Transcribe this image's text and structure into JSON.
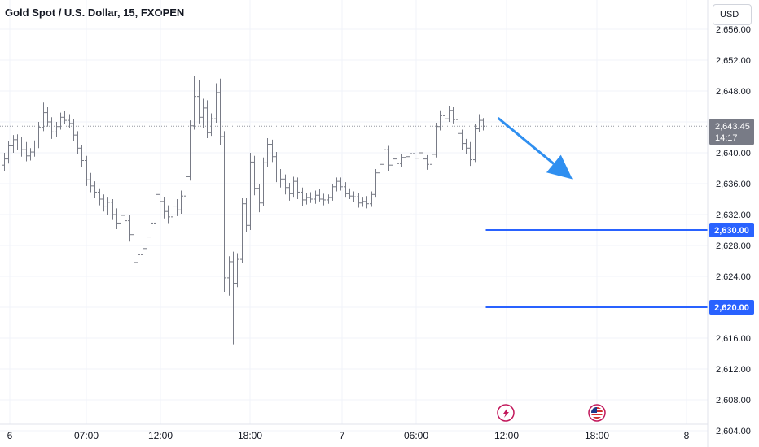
{
  "header": {
    "title": "Gold Spot / U.S. Dollar, 15, FXOPEN",
    "currency": "USD"
  },
  "chart_data": {
    "type": "bar",
    "subtype": "ohlc",
    "title": "Gold Spot / U.S. Dollar, 15, FXOPEN",
    "xlabel": "",
    "ylabel": "",
    "ylim": [
      2602.5,
      2658
    ],
    "y_ticks": [
      "2,656.00",
      "2,652.00",
      "2,648.00",
      "2,644.00",
      "2,640.00",
      "2,636.00",
      "2,632.00",
      "2,628.00",
      "2,624.00",
      "2,620.00",
      "2,616.00",
      "2,612.00",
      "2,608.00",
      "2,604.00"
    ],
    "x_ticks": [
      "6",
      "07:00",
      "12:00",
      "18:00",
      "7",
      "06:00",
      "12:00",
      "18:00",
      "8"
    ],
    "grid": true,
    "colors": {
      "bar": "#787b86",
      "level": "#2962ff",
      "arrow": "#2f8ff0",
      "price_label": "#787b86"
    },
    "current_price": {
      "label": "2,643.45",
      "value": 2643.45,
      "countdown": "14:17"
    },
    "levels": [
      {
        "label": "2,630.00",
        "value": 2630.0
      },
      {
        "label": "2,620.00",
        "value": 2620.0
      }
    ],
    "arrow": {
      "direction": "down-right",
      "from_value": 2644.3,
      "to_value": 2637.0
    },
    "events": [
      {
        "icon": "lightning-icon",
        "at_tick": "12:00"
      },
      {
        "icon": "us-flag-icon",
        "at_tick": "18:00"
      }
    ],
    "ohlc": [
      [
        2638.4,
        2640.0,
        2637.6,
        2639.2
      ],
      [
        2639.2,
        2641.5,
        2638.6,
        2640.9
      ],
      [
        2640.9,
        2642.3,
        2640.0,
        2641.7
      ],
      [
        2641.7,
        2642.4,
        2640.4,
        2641.0
      ],
      [
        2641.0,
        2642.0,
        2639.5,
        2640.4
      ],
      [
        2640.4,
        2641.4,
        2638.9,
        2639.6
      ],
      [
        2639.6,
        2640.6,
        2639.0,
        2640.1
      ],
      [
        2640.1,
        2641.6,
        2639.5,
        2641.0
      ],
      [
        2641.0,
        2644.0,
        2640.6,
        2643.3
      ],
      [
        2643.3,
        2646.5,
        2642.8,
        2645.2
      ],
      [
        2645.2,
        2645.9,
        2643.4,
        2644.0
      ],
      [
        2644.0,
        2644.6,
        2641.8,
        2642.7
      ],
      [
        2642.7,
        2644.0,
        2642.1,
        2643.4
      ],
      [
        2643.4,
        2645.2,
        2643.0,
        2644.6
      ],
      [
        2644.6,
        2645.4,
        2643.7,
        2644.2
      ],
      [
        2644.2,
        2645.0,
        2643.2,
        2643.8
      ],
      [
        2643.8,
        2644.4,
        2641.5,
        2642.3
      ],
      [
        2642.3,
        2642.8,
        2639.8,
        2640.6
      ],
      [
        2640.6,
        2641.0,
        2638.2,
        2639.0
      ],
      [
        2639.0,
        2639.6,
        2635.7,
        2636.5
      ],
      [
        2636.5,
        2637.4,
        2634.9,
        2635.7
      ],
      [
        2635.7,
        2636.3,
        2634.1,
        2634.9
      ],
      [
        2634.9,
        2635.4,
        2633.2,
        2634.0
      ],
      [
        2634.0,
        2634.6,
        2632.4,
        2633.1
      ],
      [
        2633.1,
        2634.2,
        2632.0,
        2633.6
      ],
      [
        2633.6,
        2634.0,
        2631.3,
        2632.0
      ],
      [
        2632.0,
        2632.8,
        2630.1,
        2630.9
      ],
      [
        2630.9,
        2632.6,
        2630.5,
        2631.9
      ],
      [
        2631.9,
        2632.5,
        2630.6,
        2631.2
      ],
      [
        2631.2,
        2631.9,
        2628.5,
        2629.4
      ],
      [
        2629.4,
        2629.9,
        2625.0,
        2625.8
      ],
      [
        2625.8,
        2627.3,
        2625.3,
        2626.8
      ],
      [
        2626.8,
        2628.2,
        2626.1,
        2627.6
      ],
      [
        2627.6,
        2630.0,
        2627.0,
        2629.1
      ],
      [
        2629.1,
        2631.6,
        2628.6,
        2630.9
      ],
      [
        2630.9,
        2635.2,
        2630.4,
        2634.6
      ],
      [
        2634.6,
        2635.7,
        2632.9,
        2633.7
      ],
      [
        2633.7,
        2634.3,
        2631.5,
        2632.4
      ],
      [
        2632.4,
        2633.2,
        2630.9,
        2631.7
      ],
      [
        2631.7,
        2633.8,
        2631.2,
        2633.1
      ],
      [
        2633.1,
        2634.0,
        2631.8,
        2632.6
      ],
      [
        2632.6,
        2635.1,
        2632.1,
        2634.4
      ],
      [
        2634.4,
        2637.5,
        2633.9,
        2636.9
      ],
      [
        2636.9,
        2644.2,
        2636.4,
        2643.5
      ],
      [
        2643.5,
        2650.0,
        2643.0,
        2647.3
      ],
      [
        2647.3,
        2649.4,
        2643.8,
        2644.6
      ],
      [
        2644.6,
        2647.0,
        2643.2,
        2645.8
      ],
      [
        2645.8,
        2646.8,
        2641.9,
        2642.6
      ],
      [
        2642.6,
        2645.1,
        2642.2,
        2644.4
      ],
      [
        2644.4,
        2649.0,
        2643.9,
        2647.8
      ],
      [
        2647.8,
        2649.6,
        2641.0,
        2642.1
      ],
      [
        2642.1,
        2642.8,
        2622.0,
        2623.8
      ],
      [
        2623.8,
        2626.6,
        2621.5,
        2625.9
      ],
      [
        2625.9,
        2627.2,
        2615.2,
        2623.1
      ],
      [
        2623.1,
        2627.0,
        2622.6,
        2626.2
      ],
      [
        2626.2,
        2634.1,
        2625.7,
        2633.4
      ],
      [
        2633.4,
        2634.1,
        2629.7,
        2630.6
      ],
      [
        2630.6,
        2640.0,
        2630.0,
        2638.8
      ],
      [
        2638.8,
        2639.6,
        2634.5,
        2635.4
      ],
      [
        2635.4,
        2636.0,
        2632.3,
        2633.5
      ],
      [
        2633.5,
        2639.4,
        2633.1,
        2638.7
      ],
      [
        2638.7,
        2641.9,
        2638.2,
        2641.1
      ],
      [
        2641.1,
        2641.7,
        2638.8,
        2639.5
      ],
      [
        2639.5,
        2640.1,
        2636.2,
        2637.0
      ],
      [
        2637.0,
        2637.9,
        2635.5,
        2636.6
      ],
      [
        2636.6,
        2637.2,
        2634.6,
        2635.5
      ],
      [
        2635.5,
        2636.1,
        2633.8,
        2634.7
      ],
      [
        2634.7,
        2636.9,
        2634.2,
        2636.3
      ],
      [
        2636.3,
        2636.8,
        2634.0,
        2634.9
      ],
      [
        2634.9,
        2635.5,
        2633.1,
        2633.9
      ],
      [
        2633.9,
        2634.8,
        2633.3,
        2634.2
      ],
      [
        2634.2,
        2634.9,
        2633.5,
        2634.0
      ],
      [
        2634.0,
        2635.1,
        2633.4,
        2634.5
      ],
      [
        2634.5,
        2635.3,
        2633.7,
        2634.0
      ],
      [
        2634.0,
        2634.7,
        2633.2,
        2633.9
      ],
      [
        2633.9,
        2634.6,
        2633.4,
        2634.2
      ],
      [
        2634.2,
        2636.0,
        2633.8,
        2635.6
      ],
      [
        2635.6,
        2636.8,
        2635.0,
        2636.3
      ],
      [
        2636.3,
        2636.8,
        2635.1,
        2635.6
      ],
      [
        2635.6,
        2636.2,
        2634.2,
        2634.7
      ],
      [
        2634.7,
        2635.4,
        2634.0,
        2634.4
      ],
      [
        2634.4,
        2635.0,
        2633.6,
        2634.3
      ],
      [
        2634.3,
        2634.8,
        2632.9,
        2633.5
      ],
      [
        2633.5,
        2634.2,
        2633.0,
        2633.7
      ],
      [
        2633.7,
        2634.4,
        2632.8,
        2633.4
      ],
      [
        2633.4,
        2635.0,
        2633.0,
        2634.6
      ],
      [
        2634.6,
        2637.9,
        2634.2,
        2637.4
      ],
      [
        2637.4,
        2639.0,
        2636.8,
        2638.5
      ],
      [
        2638.5,
        2641.0,
        2638.1,
        2640.4
      ],
      [
        2640.4,
        2640.9,
        2637.6,
        2638.4
      ],
      [
        2638.4,
        2639.6,
        2637.9,
        2639.2
      ],
      [
        2639.2,
        2639.9,
        2637.8,
        2638.6
      ],
      [
        2638.6,
        2639.8,
        2638.1,
        2639.4
      ],
      [
        2639.4,
        2640.3,
        2638.7,
        2639.5
      ],
      [
        2639.5,
        2640.5,
        2639.0,
        2639.9
      ],
      [
        2639.9,
        2640.6,
        2638.9,
        2639.3
      ],
      [
        2639.3,
        2640.4,
        2638.8,
        2640.0
      ],
      [
        2640.0,
        2640.6,
        2638.6,
        2639.2
      ],
      [
        2639.2,
        2639.7,
        2637.8,
        2638.5
      ],
      [
        2638.5,
        2640.3,
        2638.1,
        2639.8
      ],
      [
        2639.8,
        2643.9,
        2639.4,
        2643.4
      ],
      [
        2643.4,
        2645.5,
        2642.9,
        2644.8
      ],
      [
        2644.8,
        2645.3,
        2643.9,
        2644.4
      ],
      [
        2644.4,
        2646.0,
        2644.0,
        2645.5
      ],
      [
        2645.5,
        2645.9,
        2643.8,
        2644.3
      ],
      [
        2644.3,
        2644.8,
        2641.6,
        2642.5
      ],
      [
        2642.5,
        2643.0,
        2640.4,
        2641.2
      ],
      [
        2641.2,
        2641.8,
        2639.8,
        2640.6
      ],
      [
        2640.6,
        2641.4,
        2638.3,
        2639.1
      ],
      [
        2639.1,
        2643.7,
        2638.8,
        2643.1
      ],
      [
        2643.1,
        2645.0,
        2642.7,
        2644.2
      ],
      [
        2644.2,
        2644.5,
        2642.9,
        2643.45
      ]
    ]
  }
}
